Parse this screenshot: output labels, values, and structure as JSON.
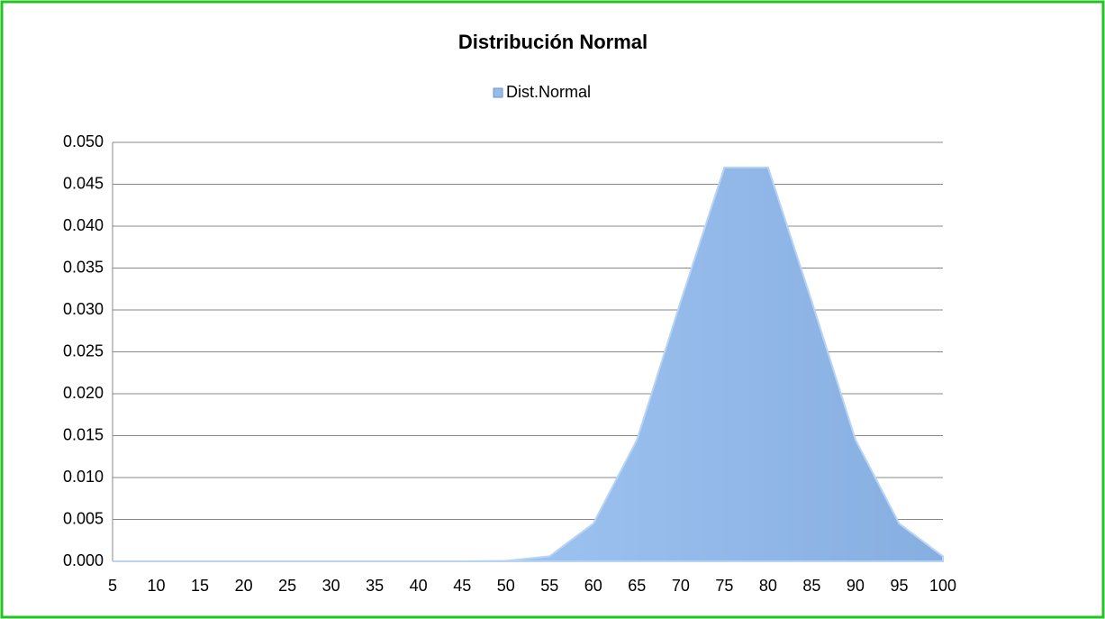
{
  "chart_data": {
    "type": "area",
    "title": "Distribución Normal",
    "categories": [
      "5",
      "10",
      "15",
      "20",
      "25",
      "30",
      "35",
      "40",
      "45",
      "50",
      "55",
      "60",
      "65",
      "70",
      "75",
      "80",
      "85",
      "90",
      "95",
      "100"
    ],
    "series": [
      {
        "name": "Dist.Normal",
        "color": "#95bbeb",
        "values": [
          0,
          0,
          0,
          0,
          0,
          0,
          0,
          0,
          0,
          5e-05,
          0.0006,
          0.0045,
          0.0145,
          0.031,
          0.047,
          0.047,
          0.031,
          0.0145,
          0.0045,
          0.0006
        ]
      }
    ],
    "ylim": [
      0,
      0.05
    ],
    "yticks": [
      {
        "value": 0,
        "label": "0.000"
      },
      {
        "value": 0.005,
        "label": "0.005"
      },
      {
        "value": 0.01,
        "label": "0.010"
      },
      {
        "value": 0.015,
        "label": "0.015"
      },
      {
        "value": 0.02,
        "label": "0.020"
      },
      {
        "value": 0.025,
        "label": "0.025"
      },
      {
        "value": 0.03,
        "label": "0.030"
      },
      {
        "value": 0.035,
        "label": "0.035"
      },
      {
        "value": 0.04,
        "label": "0.040"
      },
      {
        "value": 0.045,
        "label": "0.045"
      },
      {
        "value": 0.05,
        "label": "0.050"
      }
    ],
    "grid": true,
    "legend": "top"
  }
}
